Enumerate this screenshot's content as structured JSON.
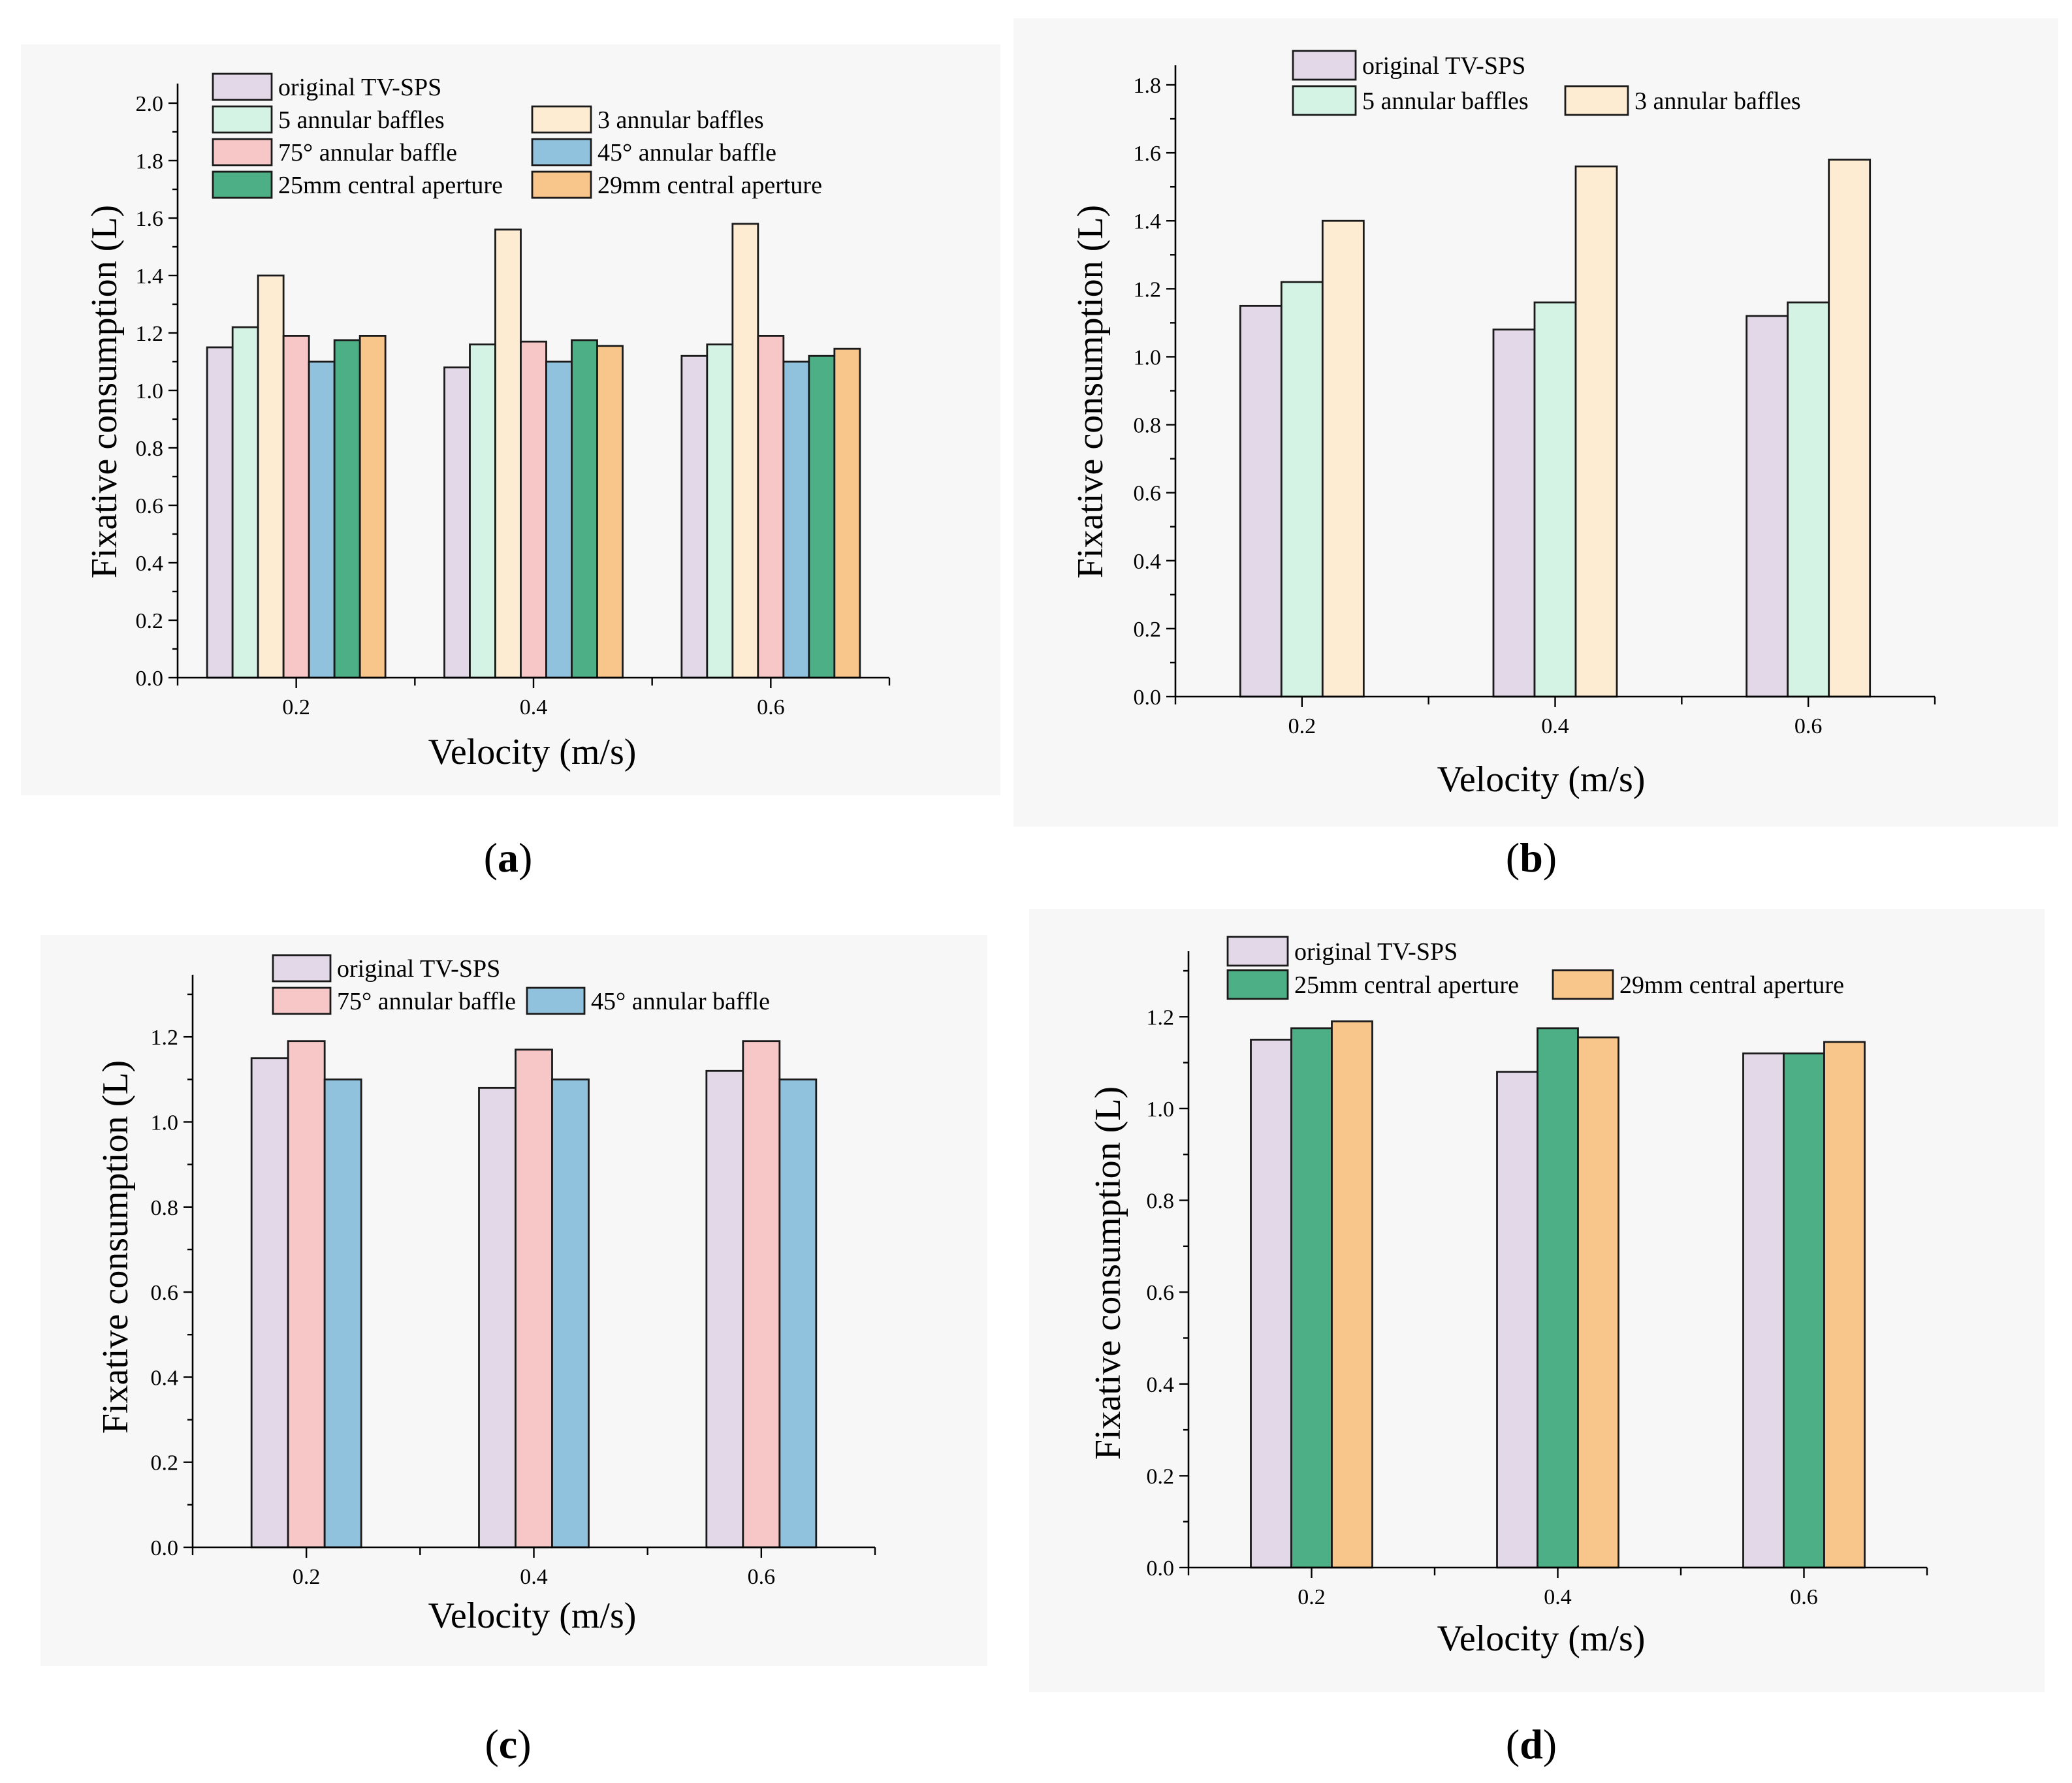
{
  "colors": {
    "original TV-SPS": "#e2d8e8",
    "5 annular baffles": "#d5f3e4",
    "3 annular baffles": "#fdebd2",
    "75° annular baffle": "#f7c7c7",
    "45° annular baffle": "#90c2dd",
    "25mm central aperture": "#4daf86",
    "29mm central aperture": "#f8c58b"
  },
  "chart_data": [
    {
      "id": "a",
      "type": "bar",
      "caption": "a",
      "categories": [
        "0.2",
        "0.4",
        "0.6"
      ],
      "xlabel": "Velocity (m/s)",
      "ylabel": "Fixative consumption (L)",
      "ylim": [
        0,
        2.0
      ],
      "yticks": [
        "0.0",
        "0.2",
        "0.4",
        "0.6",
        "0.8",
        "1.0",
        "1.2",
        "1.4",
        "1.6",
        "1.8",
        "2.0"
      ],
      "legend_position": "top-left",
      "series": [
        {
          "name": "original TV-SPS",
          "values": [
            1.15,
            1.08,
            1.12
          ]
        },
        {
          "name": "5 annular baffles",
          "values": [
            1.22,
            1.16,
            1.16
          ]
        },
        {
          "name": "3 annular baffles",
          "values": [
            1.4,
            1.56,
            1.58
          ]
        },
        {
          "name": "75° annular baffle",
          "values": [
            1.19,
            1.17,
            1.19
          ]
        },
        {
          "name": "45° annular baffle",
          "values": [
            1.1,
            1.1,
            1.1
          ]
        },
        {
          "name": "25mm central aperture",
          "values": [
            1.175,
            1.175,
            1.12
          ]
        },
        {
          "name": "29mm central aperture",
          "values": [
            1.19,
            1.155,
            1.145
          ]
        }
      ]
    },
    {
      "id": "b",
      "type": "bar",
      "caption": "b",
      "categories": [
        "0.2",
        "0.4",
        "0.6"
      ],
      "xlabel": "Velocity (m/s)",
      "ylabel": "Fixative consumption (L)",
      "ylim": [
        0,
        1.8
      ],
      "yticks": [
        "0.0",
        "0.2",
        "0.4",
        "0.6",
        "0.8",
        "1.0",
        "1.2",
        "1.4",
        "1.6",
        "1.8"
      ],
      "legend_position": "top-left",
      "series": [
        {
          "name": "original TV-SPS",
          "values": [
            1.15,
            1.08,
            1.12
          ]
        },
        {
          "name": "5 annular baffles",
          "values": [
            1.22,
            1.16,
            1.16
          ]
        },
        {
          "name": "3 annular baffles",
          "values": [
            1.4,
            1.56,
            1.58
          ]
        }
      ]
    },
    {
      "id": "c",
      "type": "bar",
      "caption": "c",
      "categories": [
        "0.2",
        "0.4",
        "0.6"
      ],
      "xlabel": "Velocity (m/s)",
      "ylabel": "Fixative consumption (L)",
      "ylim": [
        0,
        1.3
      ],
      "yticks": [
        "0.0",
        "0.2",
        "0.4",
        "0.6",
        "0.8",
        "1.0",
        "1.2"
      ],
      "legend_position": "top-center",
      "series": [
        {
          "name": "original TV-SPS",
          "values": [
            1.15,
            1.08,
            1.12
          ]
        },
        {
          "name": "75° annular baffle",
          "values": [
            1.19,
            1.17,
            1.19
          ]
        },
        {
          "name": "45° annular baffle",
          "values": [
            1.1,
            1.1,
            1.1
          ]
        }
      ]
    },
    {
      "id": "d",
      "type": "bar",
      "caption": "d",
      "categories": [
        "0.2",
        "0.4",
        "0.6"
      ],
      "xlabel": "Velocity (m/s)",
      "ylabel": "Fixative consumption (L)",
      "ylim": [
        0,
        1.3
      ],
      "yticks": [
        "0.0",
        "0.2",
        "0.4",
        "0.6",
        "0.8",
        "1.0",
        "1.2"
      ],
      "legend_position": "top-left",
      "series": [
        {
          "name": "original TV-SPS",
          "values": [
            1.15,
            1.08,
            1.12
          ]
        },
        {
          "name": "25mm central aperture",
          "values": [
            1.175,
            1.175,
            1.12
          ]
        },
        {
          "name": "29mm central aperture",
          "values": [
            1.19,
            1.155,
            1.145
          ]
        }
      ]
    }
  ]
}
